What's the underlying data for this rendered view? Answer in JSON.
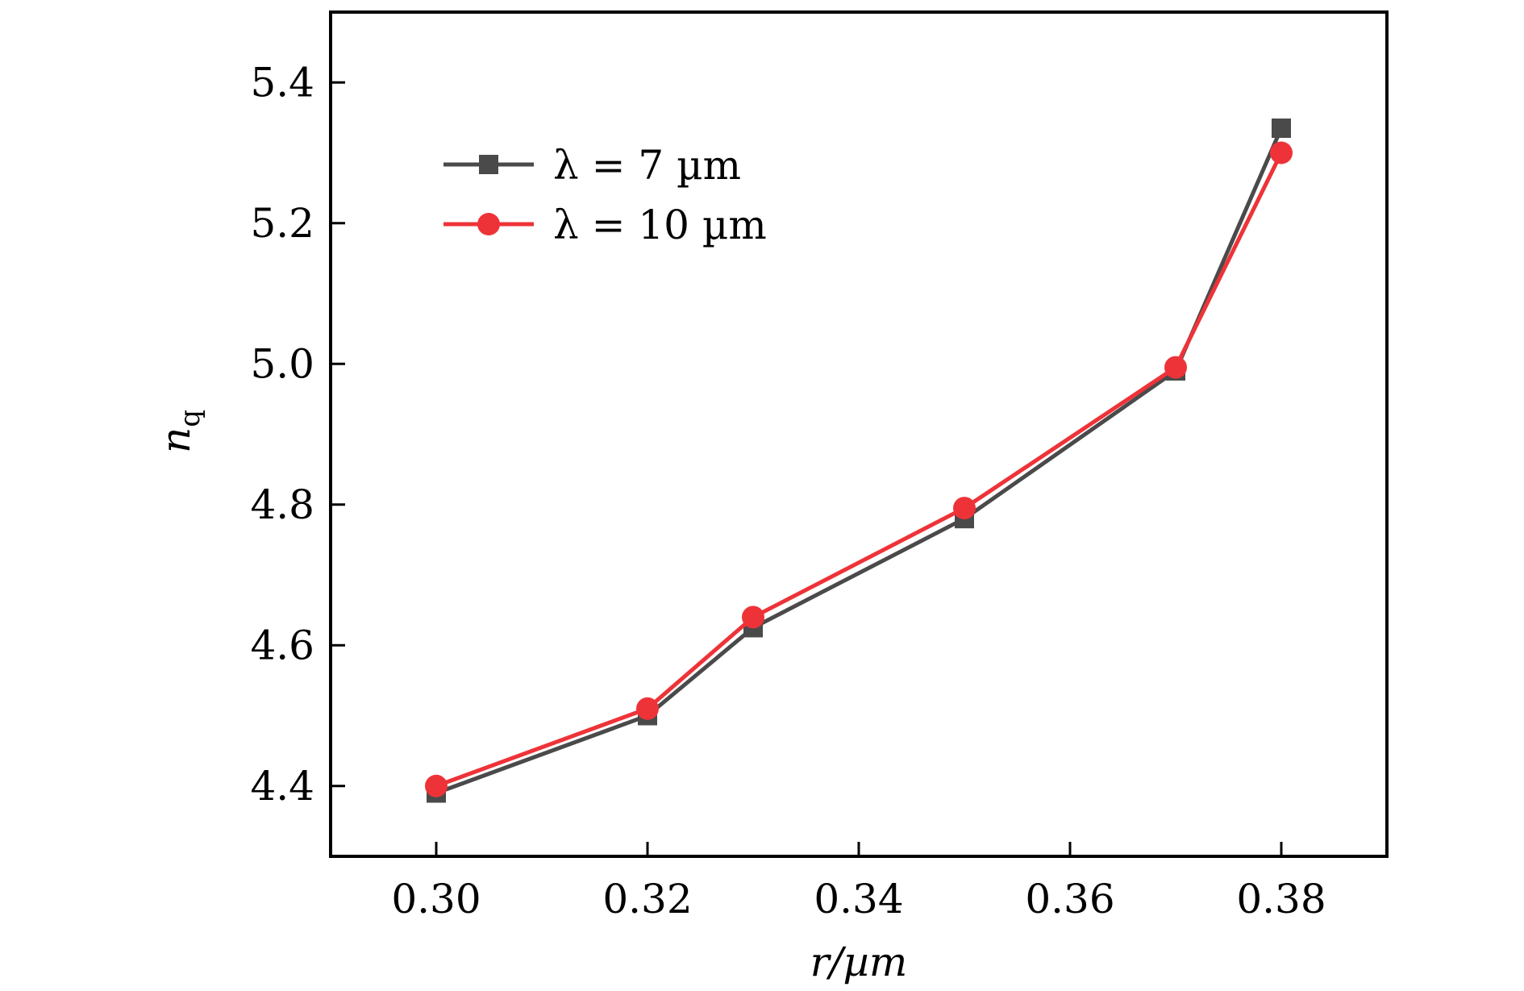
{
  "chart_data": {
    "type": "line",
    "xlabel": "r/µm",
    "ylabel": "n",
    "ylabel_sub": "q",
    "xlim": [
      0.29,
      0.39
    ],
    "ylim": [
      4.3,
      5.5
    ],
    "xticks": [
      0.3,
      0.32,
      0.34,
      0.36,
      0.38
    ],
    "xtick_labels": [
      "0.30",
      "0.32",
      "0.34",
      "0.36",
      "0.38"
    ],
    "yticks": [
      4.4,
      4.6,
      4.8,
      5.0,
      5.2,
      5.4
    ],
    "ytick_labels": [
      "4.4",
      "4.6",
      "4.8",
      "5.0",
      "5.2",
      "5.4"
    ],
    "legend_position": "upper-left",
    "series": [
      {
        "name": "λ = 7 µm",
        "color": "#4a4a4a",
        "marker": "square",
        "x": [
          0.3,
          0.32,
          0.33,
          0.35,
          0.37,
          0.38
        ],
        "values": [
          4.39,
          4.5,
          4.625,
          4.78,
          4.99,
          5.335
        ]
      },
      {
        "name": "λ = 10 µm",
        "color": "#ee3338",
        "marker": "circle",
        "x": [
          0.3,
          0.32,
          0.33,
          0.35,
          0.37,
          0.38
        ],
        "values": [
          4.4,
          4.51,
          4.64,
          4.795,
          4.995,
          5.3
        ]
      }
    ]
  }
}
